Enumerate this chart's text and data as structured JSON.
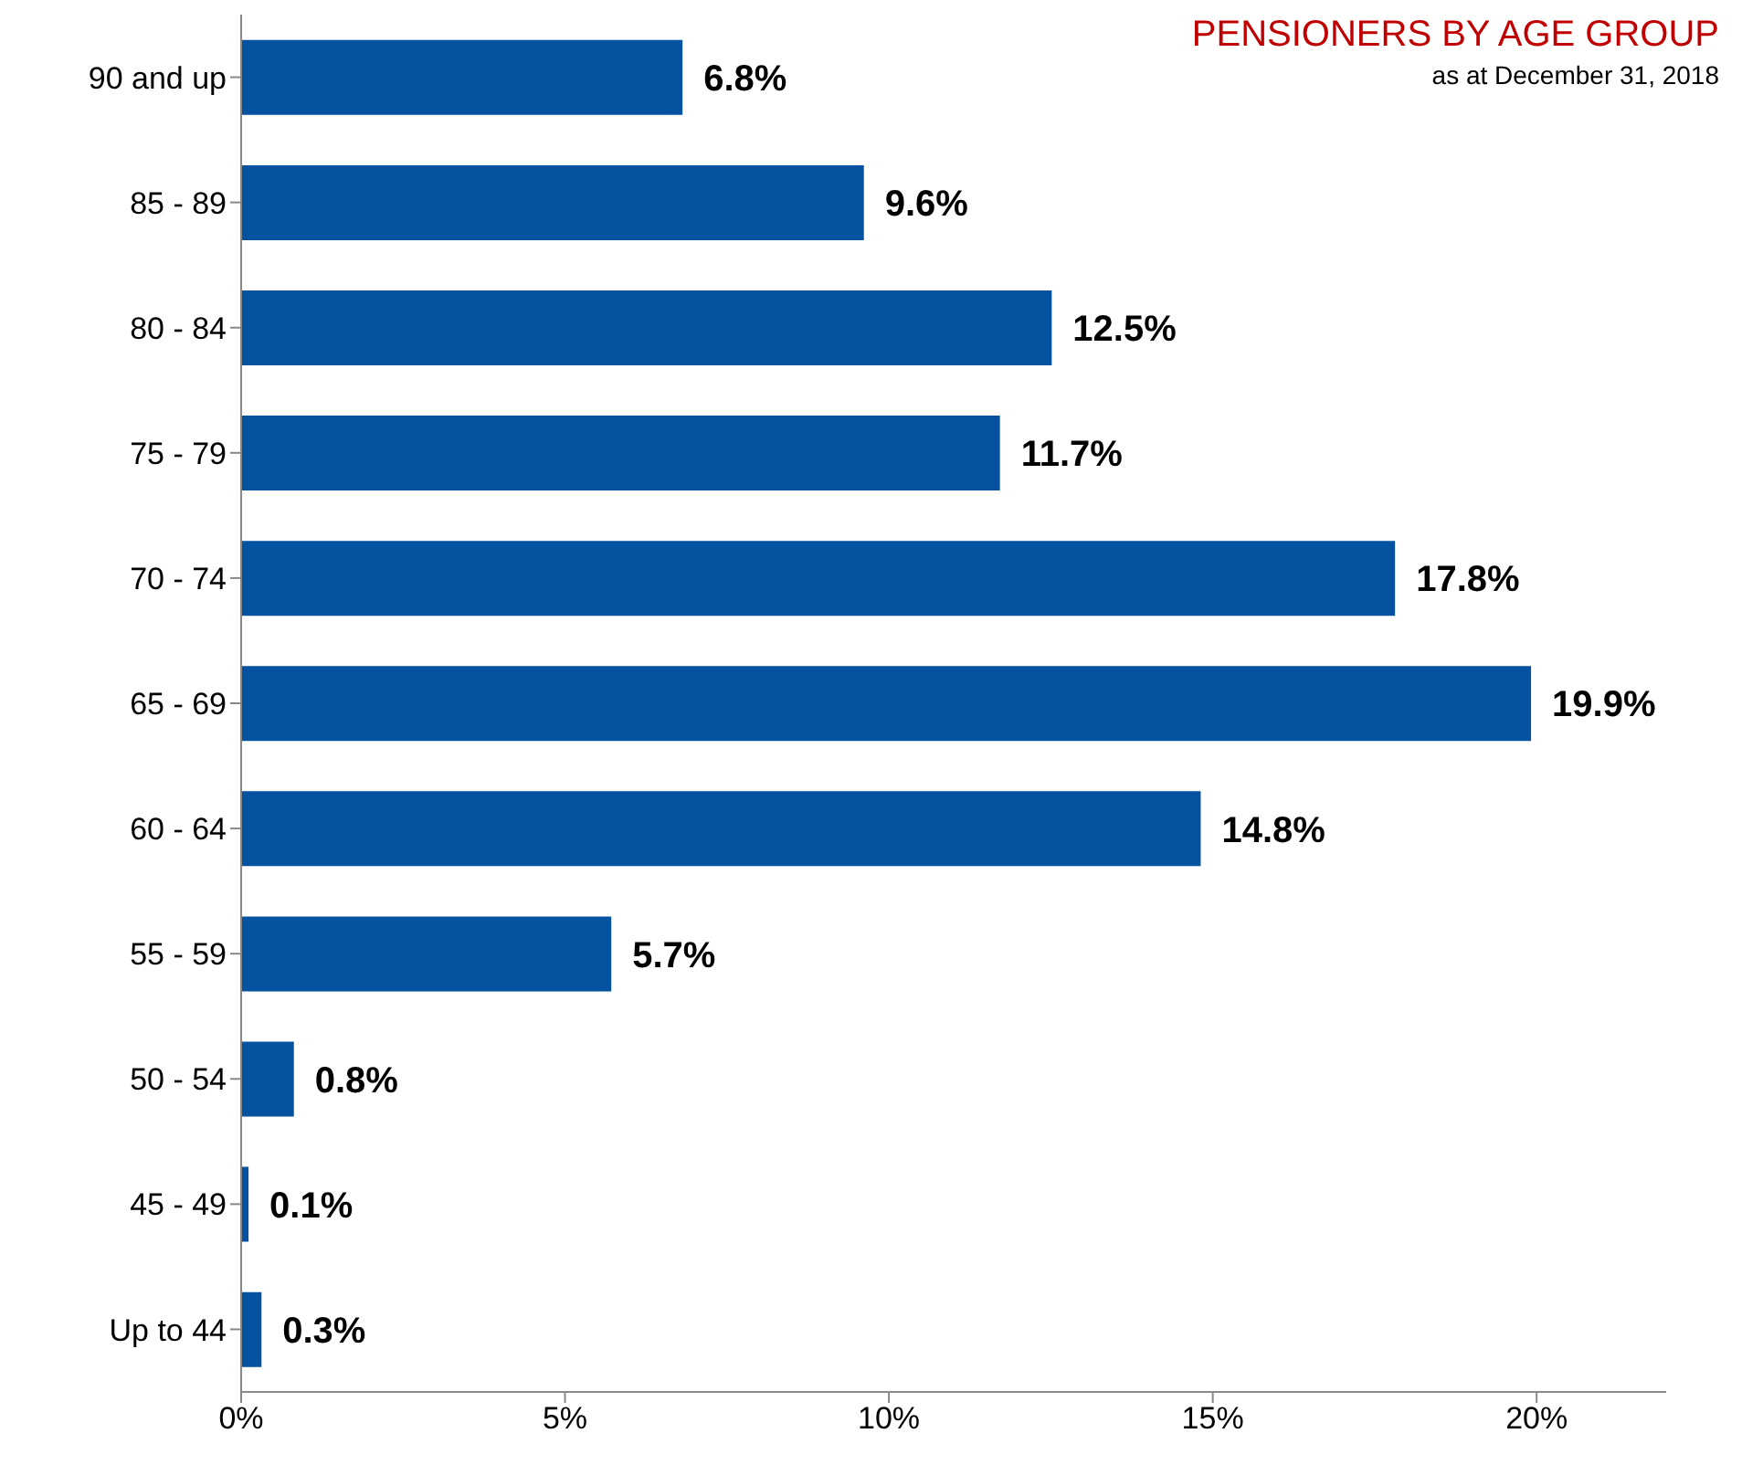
{
  "chart_data": {
    "type": "bar",
    "orientation": "horizontal",
    "title": "PENSIONERS BY AGE GROUP",
    "subtitle": "as at December 31, 2018",
    "categories": [
      "90 and up",
      "85 - 89",
      "80 - 84",
      "75 - 79",
      "70 - 74",
      "65 - 69",
      "60 - 64",
      "55 - 59",
      "50 - 54",
      "45 - 49",
      "Up to 44"
    ],
    "values": [
      6.8,
      9.6,
      12.5,
      11.7,
      17.8,
      19.9,
      14.8,
      5.7,
      0.8,
      0.1,
      0.3
    ],
    "value_labels": [
      "6.8%",
      "9.6%",
      "12.5%",
      "11.7%",
      "17.8%",
      "19.9%",
      "14.8%",
      "5.7%",
      "0.8%",
      "0.1%",
      "0.3%"
    ],
    "color": "#0553a0",
    "xlim": [
      0,
      22
    ],
    "xticks": [
      {
        "value": 0,
        "label": "0%"
      },
      {
        "value": 5,
        "label": "5%"
      },
      {
        "value": 10,
        "label": "10%"
      },
      {
        "value": 15,
        "label": "15%"
      },
      {
        "value": 20,
        "label": "20%"
      }
    ],
    "grid": false
  }
}
